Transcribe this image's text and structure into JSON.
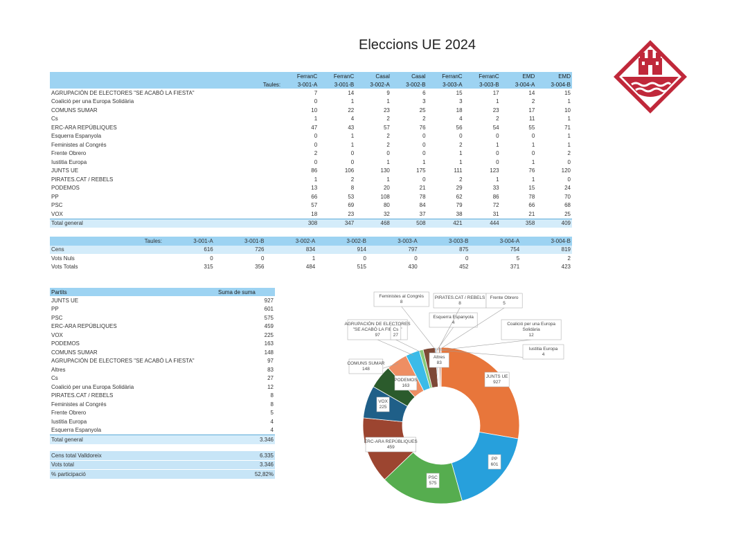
{
  "title": "Eleccions UE 2024",
  "table1": {
    "taules_label": "Taules:",
    "columns": [
      {
        "top": "FerranC",
        "bottom": "3-001-A"
      },
      {
        "top": "FerranC",
        "bottom": "3-001-B"
      },
      {
        "top": "Casal",
        "bottom": "3-002-A"
      },
      {
        "top": "Casal",
        "bottom": "3-002-B"
      },
      {
        "top": "FerranC",
        "bottom": "3-003-A"
      },
      {
        "top": "FerranC",
        "bottom": "3-003-B"
      },
      {
        "top": "EMD",
        "bottom": "3-004-A"
      },
      {
        "top": "EMD",
        "bottom": "3-004-B"
      }
    ],
    "rows": [
      {
        "party": "AGRUPACIÓN DE ELECTORES \"SE ACABÓ LA FIESTA\"",
        "values": [
          7,
          14,
          9,
          6,
          15,
          17,
          14,
          15
        ]
      },
      {
        "party": "Coalició per una Europa Solidària",
        "values": [
          0,
          1,
          1,
          3,
          3,
          1,
          2,
          1
        ]
      },
      {
        "party": "COMUNS SUMAR",
        "values": [
          10,
          22,
          23,
          25,
          18,
          23,
          17,
          10
        ]
      },
      {
        "party": "Cs",
        "values": [
          1,
          4,
          2,
          2,
          4,
          2,
          11,
          1
        ]
      },
      {
        "party": "ERC-ARA REPÚBLIQUES",
        "values": [
          47,
          43,
          57,
          76,
          56,
          54,
          55,
          71
        ]
      },
      {
        "party": "Esquerra Espanyola",
        "values": [
          0,
          1,
          2,
          0,
          0,
          0,
          0,
          1
        ]
      },
      {
        "party": "Feministes al Congrés",
        "values": [
          0,
          1,
          2,
          0,
          2,
          1,
          1,
          1
        ]
      },
      {
        "party": "Frente Obrero",
        "values": [
          2,
          0,
          0,
          0,
          1,
          0,
          0,
          2
        ]
      },
      {
        "party": "Iustitia Europa",
        "values": [
          0,
          0,
          1,
          1,
          1,
          0,
          1,
          0
        ]
      },
      {
        "party": "JUNTS UE",
        "values": [
          86,
          106,
          130,
          175,
          111,
          123,
          76,
          120
        ]
      },
      {
        "party": "PIRATES.CAT / REBELS",
        "values": [
          1,
          2,
          1,
          0,
          2,
          1,
          1,
          0
        ]
      },
      {
        "party": "PODEMOS",
        "values": [
          13,
          8,
          20,
          21,
          29,
          33,
          15,
          24
        ]
      },
      {
        "party": "PP",
        "values": [
          66,
          53,
          108,
          78,
          62,
          86,
          78,
          70
        ]
      },
      {
        "party": "PSC",
        "values": [
          57,
          69,
          80,
          84,
          79,
          72,
          66,
          68
        ]
      },
      {
        "party": "VOX",
        "values": [
          18,
          23,
          32,
          37,
          38,
          31,
          21,
          25
        ]
      }
    ],
    "total": {
      "label": "Total general",
      "values": [
        308,
        347,
        468,
        508,
        421,
        444,
        358,
        409
      ]
    }
  },
  "table2": {
    "taules_label": "Taules:",
    "columns": [
      "3-001-A",
      "3-001-B",
      "3-002-A",
      "3-002-B",
      "3-003-A",
      "3-003-B",
      "3-004-A",
      "3-004-B"
    ],
    "rows": [
      {
        "label": "Cens",
        "values": [
          616,
          726,
          834,
          914,
          797,
          875,
          754,
          819
        ]
      },
      {
        "label": "Vots Nuls",
        "values": [
          0,
          0,
          1,
          0,
          0,
          0,
          5,
          2
        ]
      },
      {
        "label": "Vots Totals",
        "values": [
          315,
          356,
          484,
          515,
          430,
          452,
          371,
          423
        ]
      }
    ]
  },
  "table3": {
    "header_party": "Partits",
    "header_sum": "Suma de suma",
    "rows": [
      {
        "party": "JUNTS UE",
        "value": "927"
      },
      {
        "party": "PP",
        "value": "601"
      },
      {
        "party": "PSC",
        "value": "575"
      },
      {
        "party": "ERC-ARA REPÚBLIQUES",
        "value": "459"
      },
      {
        "party": "VOX",
        "value": "225"
      },
      {
        "party": "PODEMOS",
        "value": "163"
      },
      {
        "party": "COMUNS SUMAR",
        "value": "148"
      },
      {
        "party": "AGRUPACIÓN DE ELECTORES \"SE ACABÓ LA FIESTA\"",
        "value": "97"
      },
      {
        "party": "Altres",
        "value": "83"
      },
      {
        "party": "Cs",
        "value": "27"
      },
      {
        "party": "Coalició per una Europa Solidària",
        "value": "12"
      },
      {
        "party": "PIRATES.CAT / REBELS",
        "value": "8"
      },
      {
        "party": "Feministes al Congrés",
        "value": "8"
      },
      {
        "party": "Frente Obrero",
        "value": "5"
      },
      {
        "party": "Iustitia Europa",
        "value": "4"
      },
      {
        "party": "Esquerra Espanyola",
        "value": "4"
      }
    ],
    "total": {
      "label": "Total general",
      "value": "3.346"
    }
  },
  "table4": {
    "rows": [
      {
        "label": "Cens total Valldoreix",
        "value": "6.335"
      },
      {
        "label": "Vots total",
        "value": "3.346"
      },
      {
        "label": "% participació",
        "value": "52,82%"
      }
    ]
  },
  "chart_data": {
    "type": "pie",
    "donut": true,
    "categories": [
      "JUNTS UE",
      "PP",
      "PSC",
      "ERC-ARA REPÚBLIQUES",
      "VOX",
      "PODEMOS",
      "COMUNS SUMAR",
      "AGRUPACIÓN DE ELECTORES \"SE ACABÓ LA FIESTA\"",
      "Cs",
      "Altres",
      "Feministes al Congrés",
      "Esquerra Espanyola",
      "PIRATES.CAT / REBELS",
      "Frente Obrero",
      "Coalició per una Europa Solidària",
      "Iustitia Europa"
    ],
    "values": [
      927,
      601,
      575,
      459,
      225,
      163,
      148,
      97,
      27,
      83,
      8,
      4,
      8,
      5,
      12,
      4
    ],
    "colors": [
      "#e8763b",
      "#27a0dc",
      "#56ad4f",
      "#9c4530",
      "#1f5f88",
      "#2b5b2c",
      "#ee8e63",
      "#3bbbe8",
      "#88c978",
      "#7e4836",
      "#6e8ea8",
      "#5d7f46",
      "#f2b799",
      "#8fd0ef",
      "#b57f6c",
      "#bfe3b5"
    ],
    "labels": [
      [
        "JUNTS UE",
        "927"
      ],
      [
        "PP",
        "601"
      ],
      [
        "PSC",
        "575"
      ],
      [
        "ERC-ARA REPÚBLIQUES",
        "459"
      ],
      [
        "VOX",
        "225"
      ],
      [
        "PODEMOS",
        "163"
      ],
      [
        "COMUNS SUMAR",
        "148"
      ],
      [
        "AGRUPACIÓN DE ELECTORES",
        "\"SE ACABÓ LA FIESTA\"",
        "97"
      ],
      [
        "Cs",
        "27"
      ],
      [
        "Altres",
        "83"
      ],
      [
        "Feministes al Congrés",
        "8"
      ],
      [
        "Esquerra Espanyola",
        "4"
      ],
      [
        "PIRATES.CAT / REBELS",
        "8"
      ],
      [
        "Frente Obrero",
        "5"
      ],
      [
        "Coalició per una Europa",
        "Solidària",
        "12"
      ],
      [
        "Iustitia Europa",
        "4"
      ]
    ]
  },
  "logo": {
    "colors": {
      "red": "#c0283a",
      "white": "#ffffff"
    },
    "icon": "castle-shield-icon"
  }
}
